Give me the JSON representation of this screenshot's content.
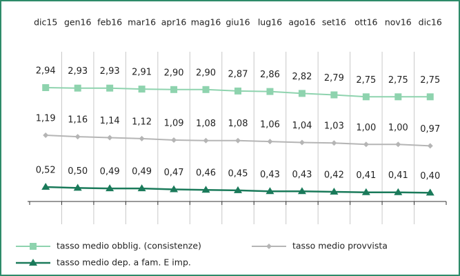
{
  "chart_data": {
    "type": "line",
    "categories": [
      "dic15",
      "gen16",
      "feb16",
      "mar16",
      "apr16",
      "mag16",
      "giu16",
      "lug16",
      "ago16",
      "set16",
      "ott16",
      "nov16",
      "dic16"
    ],
    "series": [
      {
        "name": "tasso medio obblig. (consistenze)",
        "color": "#8ed3ae",
        "marker": "square",
        "values": [
          2.94,
          2.93,
          2.93,
          2.91,
          2.9,
          2.9,
          2.87,
          2.86,
          2.82,
          2.79,
          2.75,
          2.75,
          2.75
        ],
        "value_labels": [
          "2,94",
          "2,93",
          "2,93",
          "2,91",
          "2,90",
          "2,90",
          "2,87",
          "2,86",
          "2,82",
          "2,79",
          "2,75",
          "2,75",
          "2,75"
        ]
      },
      {
        "name": "tasso medio provvista",
        "color": "#b5b5b5",
        "marker": "diamond",
        "values": [
          1.19,
          1.16,
          1.14,
          1.12,
          1.09,
          1.08,
          1.08,
          1.06,
          1.04,
          1.03,
          1.0,
          1.0,
          0.97
        ],
        "value_labels": [
          "1,19",
          "1,16",
          "1,14",
          "1,12",
          "1,09",
          "1,08",
          "1,08",
          "1,06",
          "1,04",
          "1,03",
          "1,00",
          "1,00",
          "0,97"
        ]
      },
      {
        "name": "tasso medio dep. a fam. E imp.",
        "color": "#1a7a5a",
        "marker": "triangle",
        "values": [
          0.52,
          0.5,
          0.49,
          0.49,
          0.47,
          0.46,
          0.45,
          0.43,
          0.43,
          0.42,
          0.41,
          0.41,
          0.4
        ],
        "value_labels": [
          "0,52",
          "0,50",
          "0,49",
          "0,49",
          "0,47",
          "0,46",
          "0,45",
          "0,43",
          "0,43",
          "0,42",
          "0,41",
          "0,41",
          "0,40"
        ]
      }
    ]
  }
}
